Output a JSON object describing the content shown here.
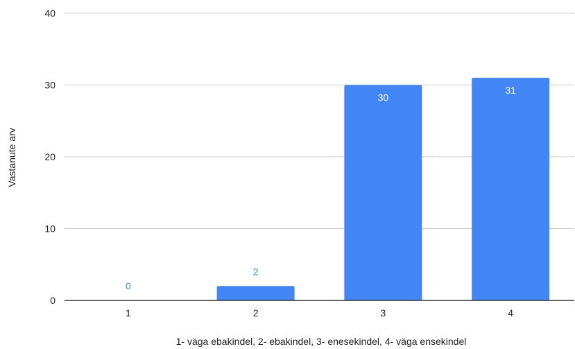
{
  "chart_data": {
    "type": "bar",
    "categories": [
      "1",
      "2",
      "3",
      "4"
    ],
    "values": [
      0,
      2,
      30,
      31
    ],
    "title": "",
    "xlabel": "1- väga ebakindel, 2- ebakindel, 3- enesekindel, 4- väga ensekindel",
    "ylabel": "Vastanute arv",
    "ylim": [
      0,
      40
    ],
    "yticks": [
      "0",
      "10",
      "20",
      "30",
      "40"
    ],
    "data_labels": [
      "0",
      "2",
      "30",
      "31"
    ],
    "grid": true,
    "legend": "none",
    "colors": {
      "bar": "#4285f4",
      "label_inside": "#ffffff",
      "label_outside": "#4285f4",
      "grid": "#cccccc",
      "axis": "#333333"
    }
  }
}
